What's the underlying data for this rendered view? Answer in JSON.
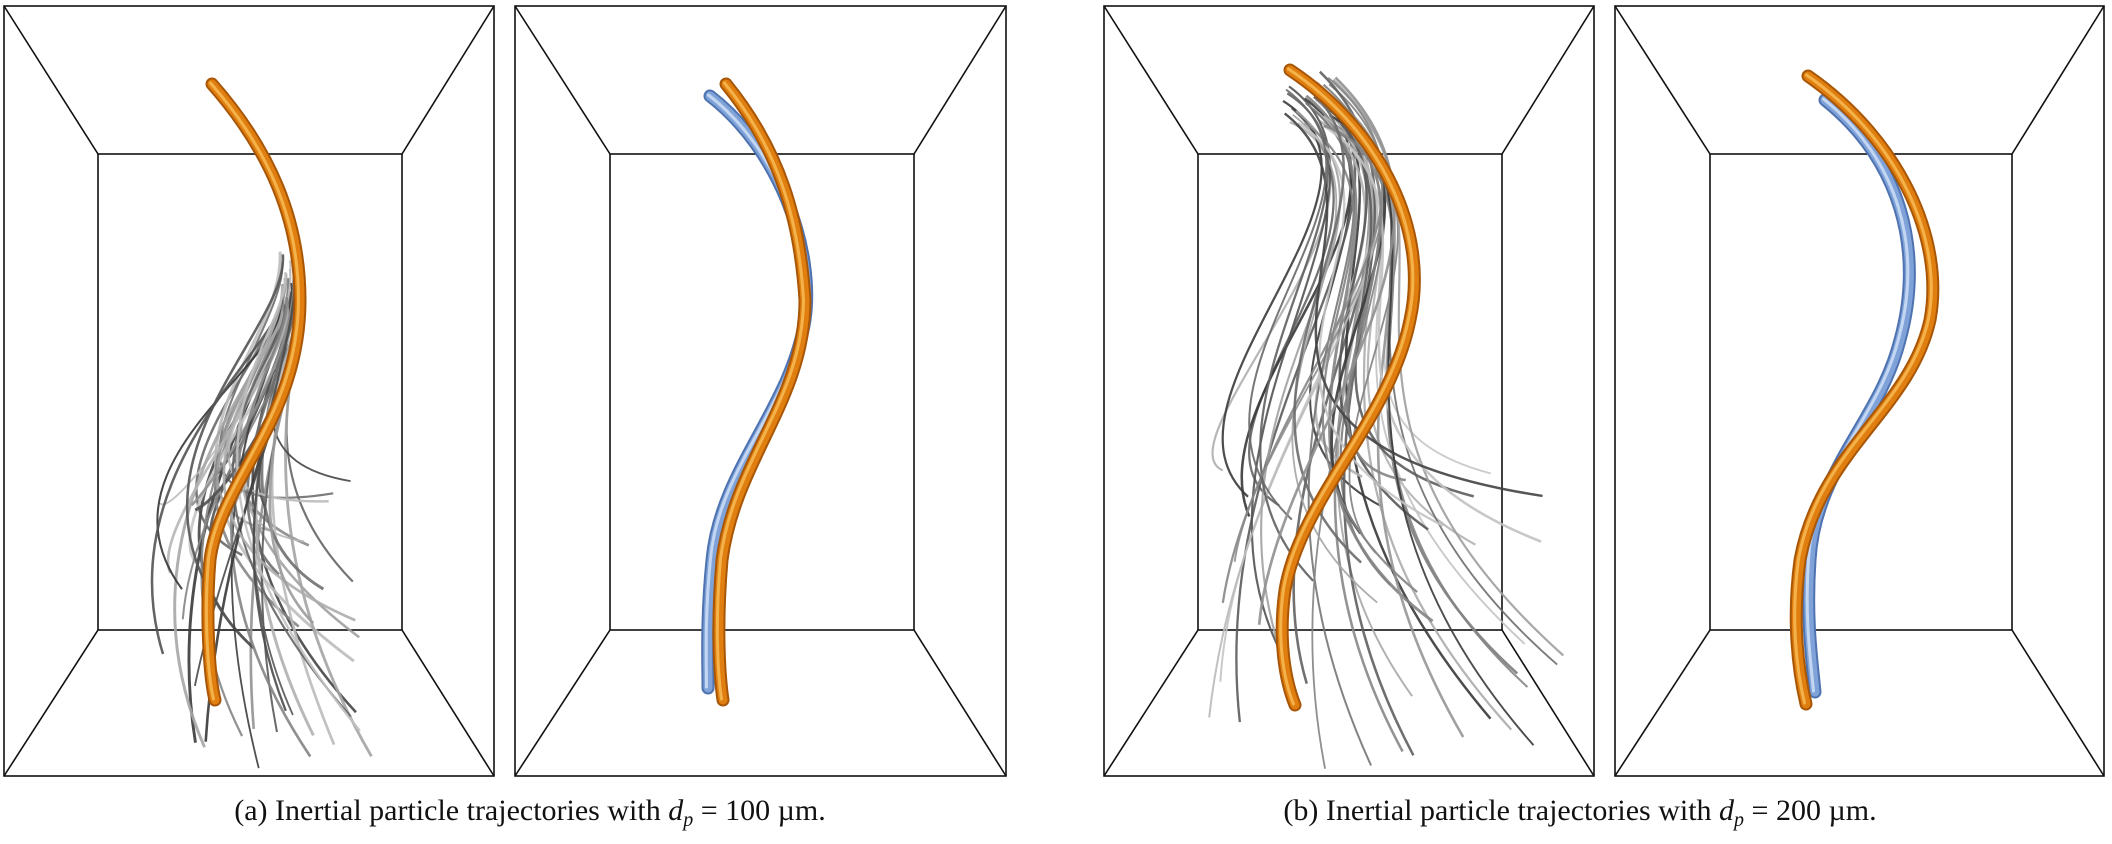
{
  "figure": {
    "panels": [
      {
        "id": "a1",
        "label": "inertial trajectories 100um with reference",
        "kind": "bundle",
        "spread": 0.55
      },
      {
        "id": "a2",
        "label": "reference vs inertial 100um",
        "kind": "pair"
      },
      {
        "id": "b1",
        "label": "inertial trajectories 200um with reference",
        "kind": "bundle",
        "spread": 0.9
      },
      {
        "id": "b2",
        "label": "reference vs inertial 200um",
        "kind": "pair"
      }
    ],
    "colors": {
      "frame": "#111111",
      "orange": "#e07f10",
      "orange_dark": "#a85606",
      "orange_light": "#f4b24a",
      "blue": "#7fa3d9",
      "blue_dark": "#4f73b0",
      "blue_light": "#c3d6f2",
      "gray_dark": "#3a3a3a",
      "gray_light": "#b8b8b8"
    }
  },
  "captions": {
    "a": {
      "prefix": "(a)  Inertial particle trajectories with ",
      "var": "d",
      "sub": "p",
      "value": " = 100 µm."
    },
    "b": {
      "prefix": "(b)  Inertial particle trajectories with ",
      "var": "d",
      "sub": "p",
      "value": " = 200 µm."
    }
  }
}
